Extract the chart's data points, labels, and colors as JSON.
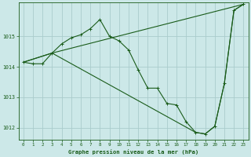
{
  "background_color": "#cce8e8",
  "grid_color": "#aacccc",
  "line_color": "#1a5c1a",
  "title": "Graphe pression niveau de la mer (hPa)",
  "xlim": [
    -0.5,
    23.5
  ],
  "ylim": [
    1011.6,
    1016.1
  ],
  "yticks": [
    1012,
    1013,
    1014,
    1015
  ],
  "xticks": [
    0,
    1,
    2,
    3,
    4,
    5,
    6,
    7,
    8,
    9,
    10,
    11,
    12,
    13,
    14,
    15,
    16,
    17,
    18,
    19,
    20,
    21,
    22,
    23
  ],
  "series1_x": [
    0,
    1,
    2,
    3,
    4,
    5,
    6,
    7,
    8,
    9,
    10,
    11,
    12,
    13,
    14,
    15,
    16,
    17,
    18,
    19,
    20,
    21,
    22,
    23
  ],
  "series1_y": [
    1014.15,
    1014.1,
    1014.1,
    1014.45,
    1014.75,
    1014.95,
    1015.05,
    1015.25,
    1015.55,
    1015.0,
    1014.85,
    1014.55,
    1013.9,
    1013.3,
    1013.3,
    1012.8,
    1012.75,
    1012.2,
    1011.85,
    1011.8,
    1012.05,
    1013.45,
    1015.85,
    1016.05
  ],
  "series2_x": [
    0,
    3,
    23
  ],
  "series2_y": [
    1014.15,
    1014.45,
    1016.05
  ],
  "series3_x": [
    0,
    3,
    18,
    19,
    20,
    21,
    22,
    23
  ],
  "series3_y": [
    1014.15,
    1014.45,
    1011.85,
    1011.8,
    1012.05,
    1013.45,
    1015.85,
    1016.05
  ]
}
